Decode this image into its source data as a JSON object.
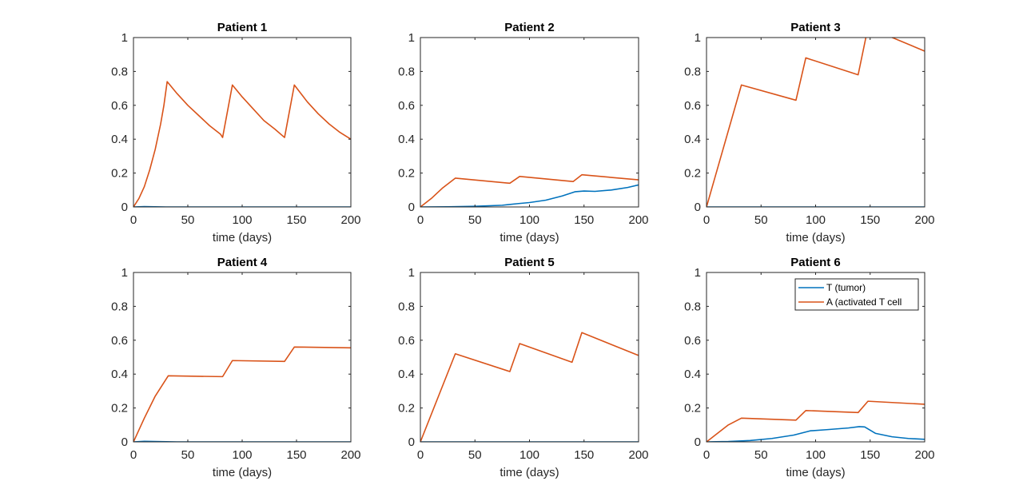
{
  "chart_data": [
    {
      "type": "line",
      "title": "Patient 1",
      "xlabel": "time (days)",
      "ylabel": "",
      "xlim": [
        0,
        200
      ],
      "ylim": [
        0,
        1
      ],
      "xticks": [
        0,
        50,
        100,
        150,
        200
      ],
      "yticks": [
        0,
        0.2,
        0.4,
        0.6,
        0.8,
        1
      ],
      "series": [
        {
          "color": "#0072BD",
          "points": [
            [
              0,
              0
            ],
            [
              10,
              0.002
            ],
            [
              20,
              0.001
            ],
            [
              30,
              0
            ],
            [
              200,
              0
            ]
          ]
        },
        {
          "color": "#D95319",
          "points": [
            [
              0,
              0
            ],
            [
              5,
              0.05
            ],
            [
              10,
              0.12
            ],
            [
              15,
              0.22
            ],
            [
              20,
              0.34
            ],
            [
              25,
              0.49
            ],
            [
              28,
              0.6
            ],
            [
              31,
              0.74
            ],
            [
              40,
              0.67
            ],
            [
              50,
              0.6
            ],
            [
              60,
              0.54
            ],
            [
              70,
              0.48
            ],
            [
              80,
              0.43
            ],
            [
              82,
              0.41
            ],
            [
              91,
              0.72
            ],
            [
              100,
              0.65
            ],
            [
              110,
              0.58
            ],
            [
              120,
              0.51
            ],
            [
              130,
              0.46
            ],
            [
              139,
              0.41
            ],
            [
              148,
              0.72
            ],
            [
              160,
              0.62
            ],
            [
              170,
              0.55
            ],
            [
              180,
              0.49
            ],
            [
              190,
              0.44
            ],
            [
              200,
              0.4
            ]
          ]
        }
      ]
    },
    {
      "type": "line",
      "title": "Patient 2",
      "xlabel": "time (days)",
      "ylabel": "",
      "xlim": [
        0,
        200
      ],
      "ylim": [
        0,
        1
      ],
      "xticks": [
        0,
        50,
        100,
        150,
        200
      ],
      "yticks": [
        0,
        0.2,
        0.4,
        0.6,
        0.8,
        1
      ],
      "series": [
        {
          "color": "#0072BD",
          "points": [
            [
              0,
              0
            ],
            [
              25,
              0.001
            ],
            [
              50,
              0.004
            ],
            [
              75,
              0.01
            ],
            [
              90,
              0.02
            ],
            [
              100,
              0.026
            ],
            [
              115,
              0.04
            ],
            [
              130,
              0.065
            ],
            [
              142,
              0.09
            ],
            [
              150,
              0.094
            ],
            [
              160,
              0.092
            ],
            [
              175,
              0.1
            ],
            [
              190,
              0.115
            ],
            [
              200,
              0.13
            ]
          ]
        },
        {
          "color": "#D95319",
          "points": [
            [
              0,
              0
            ],
            [
              10,
              0.05
            ],
            [
              20,
              0.11
            ],
            [
              32,
              0.17
            ],
            [
              82,
              0.14
            ],
            [
              91,
              0.18
            ],
            [
              140,
              0.15
            ],
            [
              148,
              0.19
            ],
            [
              200,
              0.16
            ]
          ]
        }
      ]
    },
    {
      "type": "line",
      "title": "Patient 3",
      "xlabel": "time (days)",
      "ylabel": "",
      "xlim": [
        0,
        200
      ],
      "ylim": [
        0,
        1
      ],
      "xticks": [
        0,
        50,
        100,
        150,
        200
      ],
      "yticks": [
        0,
        0.2,
        0.4,
        0.6,
        0.8,
        1
      ],
      "series": [
        {
          "color": "#0072BD",
          "points": [
            [
              0,
              0
            ],
            [
              200,
              0
            ]
          ]
        },
        {
          "color": "#D95319",
          "points": [
            [
              0,
              0
            ],
            [
              32,
              0.72
            ],
            [
              82,
              0.63
            ],
            [
              91,
              0.88
            ],
            [
              139,
              0.78
            ],
            [
              148,
              1.06
            ],
            [
              200,
              0.92
            ]
          ]
        }
      ]
    },
    {
      "type": "line",
      "title": "Patient 4",
      "xlabel": "time (days)",
      "ylabel": "",
      "xlim": [
        0,
        200
      ],
      "ylim": [
        0,
        1
      ],
      "xticks": [
        0,
        50,
        100,
        150,
        200
      ],
      "yticks": [
        0,
        0.2,
        0.4,
        0.6,
        0.8,
        1
      ],
      "series": [
        {
          "color": "#0072BD",
          "points": [
            [
              0,
              0
            ],
            [
              10,
              0.003
            ],
            [
              20,
              0.002
            ],
            [
              40,
              0
            ],
            [
              200,
              0
            ]
          ]
        },
        {
          "color": "#D95319",
          "points": [
            [
              0,
              0
            ],
            [
              10,
              0.14
            ],
            [
              20,
              0.27
            ],
            [
              32,
              0.39
            ],
            [
              82,
              0.385
            ],
            [
              91,
              0.48
            ],
            [
              139,
              0.475
            ],
            [
              148,
              0.56
            ],
            [
              200,
              0.555
            ]
          ]
        }
      ]
    },
    {
      "type": "line",
      "title": "Patient 5",
      "xlabel": "time (days)",
      "ylabel": "",
      "xlim": [
        0,
        200
      ],
      "ylim": [
        0,
        1
      ],
      "xticks": [
        0,
        50,
        100,
        150,
        200
      ],
      "yticks": [
        0,
        0.2,
        0.4,
        0.6,
        0.8,
        1
      ],
      "series": [
        {
          "color": "#0072BD",
          "points": [
            [
              0,
              0
            ],
            [
              200,
              0
            ]
          ]
        },
        {
          "color": "#D95319",
          "points": [
            [
              0,
              0
            ],
            [
              32,
              0.52
            ],
            [
              82,
              0.415
            ],
            [
              91,
              0.58
            ],
            [
              139,
              0.47
            ],
            [
              148,
              0.645
            ],
            [
              200,
              0.51
            ]
          ]
        }
      ]
    },
    {
      "type": "line",
      "title": "Patient 6",
      "xlabel": "time (days)",
      "ylabel": "",
      "xlim": [
        0,
        200
      ],
      "ylim": [
        0,
        1
      ],
      "xticks": [
        0,
        50,
        100,
        150,
        200
      ],
      "yticks": [
        0,
        0.2,
        0.4,
        0.6,
        0.8,
        1
      ],
      "legend": {
        "position": "top-right",
        "entries": [
          "T (tumor)",
          "A (activated T cell"
        ]
      },
      "series": [
        {
          "color": "#0072BD",
          "name": "T (tumor)",
          "points": [
            [
              0,
              0
            ],
            [
              20,
              0.002
            ],
            [
              40,
              0.008
            ],
            [
              60,
              0.02
            ],
            [
              80,
              0.04
            ],
            [
              95,
              0.065
            ],
            [
              110,
              0.072
            ],
            [
              130,
              0.082
            ],
            [
              140,
              0.09
            ],
            [
              145,
              0.088
            ],
            [
              155,
              0.05
            ],
            [
              170,
              0.03
            ],
            [
              185,
              0.02
            ],
            [
              200,
              0.015
            ]
          ]
        },
        {
          "color": "#D95319",
          "name": "A (activated T cell",
          "points": [
            [
              0,
              0
            ],
            [
              10,
              0.05
            ],
            [
              20,
              0.1
            ],
            [
              32,
              0.14
            ],
            [
              82,
              0.128
            ],
            [
              91,
              0.185
            ],
            [
              139,
              0.173
            ],
            [
              148,
              0.24
            ],
            [
              200,
              0.222
            ]
          ]
        }
      ]
    }
  ]
}
